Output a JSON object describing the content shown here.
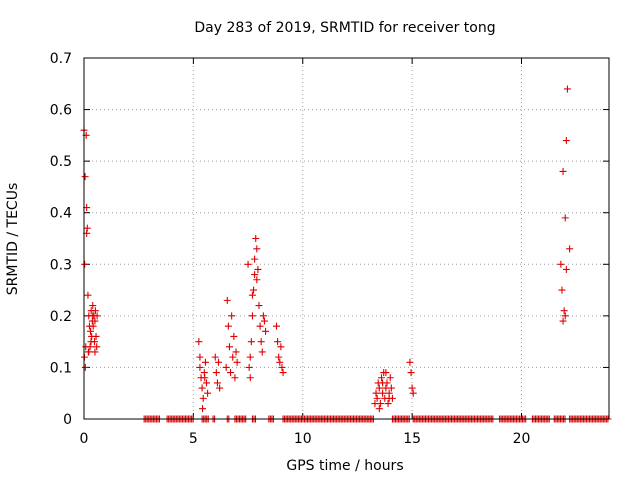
{
  "chart_data": {
    "type": "scatter",
    "title": "Day 283 of 2019, SRMTID for receiver tong",
    "xlabel": "GPS time / hours",
    "ylabel": "SRMTID / TECUs",
    "xlim": [
      0,
      24
    ],
    "ylim": [
      0,
      0.7
    ],
    "xticks": [
      0,
      5,
      10,
      15,
      20
    ],
    "xtick_labels": [
      "0",
      "5",
      "10",
      "15",
      "20"
    ],
    "yticks": [
      0,
      0.1,
      0.2,
      0.3,
      0.4,
      0.5,
      0.6,
      0.7
    ],
    "ytick_labels": [
      "0",
      "0.1",
      "0.2",
      "0.3",
      "0.4",
      "0.5",
      "0.6",
      "0.7"
    ],
    "grid": true,
    "marker": "plus",
    "color": "#e00000",
    "series": [
      {
        "name": "SRMTID",
        "x": [
          0.0,
          0.03,
          0.05,
          0.08,
          0.1,
          0.12,
          0.15,
          0.18,
          0.2,
          0.22,
          0.25,
          0.28,
          0.3,
          0.33,
          0.35,
          0.38,
          0.4,
          0.42,
          0.45,
          0.48,
          0.5,
          0.52,
          0.55,
          0.58,
          0.6,
          0.02,
          0.06,
          0.12,
          0.22,
          0.32,
          0.4,
          0.5,
          5.25,
          5.3,
          5.35,
          5.4,
          5.45,
          5.5,
          5.55,
          5.6,
          5.65,
          5.3,
          5.42,
          5.52,
          6.0,
          6.05,
          6.1,
          6.15,
          6.2,
          6.5,
          6.55,
          6.6,
          6.65,
          6.7,
          6.75,
          6.8,
          6.85,
          6.9,
          6.95,
          7.0,
          7.5,
          7.55,
          7.6,
          7.65,
          7.7,
          7.75,
          7.8,
          7.85,
          7.9,
          7.95,
          8.0,
          8.05,
          8.1,
          8.15,
          8.2,
          8.25,
          8.3,
          7.6,
          7.7,
          7.8,
          7.9,
          8.8,
          8.85,
          8.9,
          8.95,
          9.0,
          9.05,
          9.1,
          13.3,
          13.35,
          13.4,
          13.45,
          13.5,
          13.55,
          13.6,
          13.65,
          13.7,
          13.75,
          13.8,
          13.85,
          13.9,
          13.95,
          14.0,
          14.05,
          14.1,
          13.5,
          13.65,
          13.8,
          13.95,
          14.9,
          14.95,
          15.0,
          15.05,
          21.8,
          21.85,
          21.9,
          21.95,
          22.0,
          22.05,
          22.1,
          22.2,
          21.9,
          22.0,
          22.05
        ],
        "y": [
          0.56,
          0.3,
          0.47,
          0.14,
          0.55,
          0.41,
          0.37,
          0.24,
          0.13,
          0.2,
          0.18,
          0.14,
          0.17,
          0.21,
          0.16,
          0.19,
          0.22,
          0.18,
          0.2,
          0.15,
          0.19,
          0.21,
          0.16,
          0.14,
          0.2,
          0.12,
          0.1,
          0.36,
          0.13,
          0.15,
          0.2,
          0.13,
          0.15,
          0.1,
          0.08,
          0.06,
          0.04,
          0.09,
          0.11,
          0.07,
          0.05,
          0.12,
          0.02,
          0.08,
          0.12,
          0.09,
          0.07,
          0.11,
          0.06,
          0.1,
          0.23,
          0.18,
          0.14,
          0.09,
          0.2,
          0.12,
          0.16,
          0.08,
          0.13,
          0.11,
          0.3,
          0.1,
          0.12,
          0.15,
          0.2,
          0.25,
          0.28,
          0.35,
          0.33,
          0.29,
          0.22,
          0.18,
          0.15,
          0.13,
          0.2,
          0.19,
          0.17,
          0.08,
          0.24,
          0.31,
          0.27,
          0.18,
          0.15,
          0.12,
          0.11,
          0.14,
          0.1,
          0.09,
          0.03,
          0.05,
          0.04,
          0.07,
          0.06,
          0.03,
          0.08,
          0.05,
          0.09,
          0.04,
          0.06,
          0.07,
          0.03,
          0.05,
          0.08,
          0.06,
          0.04,
          0.02,
          0.07,
          0.09,
          0.04,
          0.11,
          0.09,
          0.06,
          0.05,
          0.3,
          0.25,
          0.48,
          0.21,
          0.2,
          0.54,
          0.64,
          0.33,
          0.19,
          0.39,
          0.29
        ]
      },
      {
        "name": "zero-level",
        "segments": [
          [
            2.75,
            3.5
          ],
          [
            3.8,
            5.0
          ],
          [
            5.4,
            5.7
          ],
          [
            5.9,
            6.0
          ],
          [
            6.55,
            6.65
          ],
          [
            6.9,
            7.4
          ],
          [
            7.7,
            7.9
          ],
          [
            8.45,
            8.7
          ],
          [
            9.1,
            13.25
          ],
          [
            14.1,
            14.9
          ],
          [
            15.05,
            18.7
          ],
          [
            19.0,
            20.2
          ],
          [
            20.5,
            21.3
          ],
          [
            21.5,
            22.0
          ],
          [
            22.2,
            24.0
          ]
        ]
      }
    ]
  }
}
